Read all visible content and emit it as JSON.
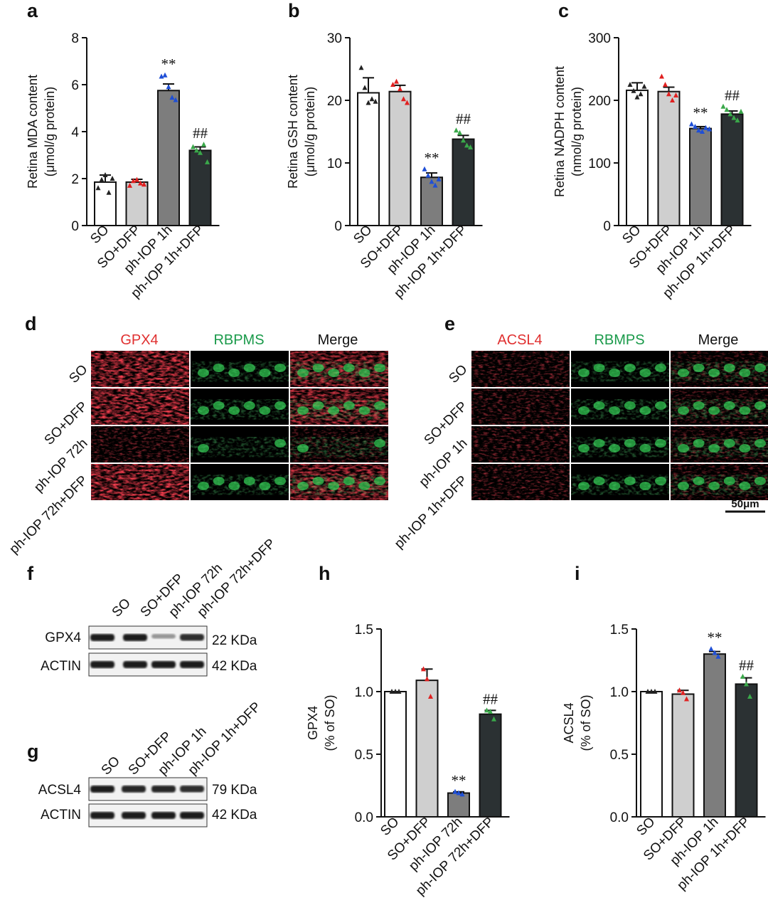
{
  "colors": {
    "so": "#ffffff",
    "so_dfp": "#cfcfcf",
    "iop": "#7d7d7d",
    "iop_dfp": "#2b3133",
    "dot_so": "#222222",
    "dot_so_dfp": "#e02020",
    "dot_iop": "#1f4fd6",
    "dot_iop_dfp": "#3aa84a",
    "red_channel": "#e03030",
    "green_channel": "#1a9a4a"
  },
  "panel_letters": {
    "a": "a",
    "b": "b",
    "c": "c",
    "d": "d",
    "e": "e",
    "f": "f",
    "g": "g",
    "h": "h",
    "i": "i"
  },
  "chart_data": [
    {
      "id": "a",
      "type": "bar",
      "ylabel_line1": "Retina MDA content",
      "ylabel_line2": "(μmol/g protein)",
      "categories": [
        "SO",
        "SO+DFP",
        "ph-IOP 1h",
        "ph-IOP 1h+DFP"
      ],
      "values": [
        1.85,
        1.85,
        5.75,
        3.2
      ],
      "errors": [
        0.3,
        0.12,
        0.28,
        0.15
      ],
      "points": [
        [
          1.6,
          1.95,
          2.15,
          1.4,
          2.0
        ],
        [
          1.7,
          1.9,
          1.95,
          1.8,
          1.75
        ],
        [
          6.35,
          6.4,
          5.9,
          5.45,
          5.35
        ],
        [
          3.35,
          3.2,
          3.1,
          3.45,
          2.7
        ]
      ],
      "ylim": [
        0,
        8
      ],
      "yticks": [
        0,
        2,
        4,
        6,
        8
      ],
      "ytick_labels": [
        "0",
        "2",
        "4",
        "6",
        "8"
      ],
      "annotations": [
        "",
        "",
        "**",
        "##"
      ]
    },
    {
      "id": "b",
      "type": "bar",
      "ylabel_line1": "Retina GSH content",
      "ylabel_line2": "(μmol/g protein)",
      "categories": [
        "SO",
        "SO+DFP",
        "ph-IOP 1h",
        "ph-IOP 1h+DFP"
      ],
      "values": [
        21.2,
        21.4,
        7.7,
        13.8
      ],
      "errors": [
        2.4,
        1.0,
        0.7,
        0.6
      ],
      "points": [
        [
          25.2,
          22.0,
          19.6,
          20.2,
          19.8
        ],
        [
          22.5,
          23.0,
          21.8,
          20.2,
          19.6
        ],
        [
          9.0,
          8.0,
          7.0,
          6.4,
          7.4
        ],
        [
          15.2,
          14.8,
          13.6,
          12.8,
          12.5
        ]
      ],
      "ylim": [
        0,
        30
      ],
      "yticks": [
        0,
        10,
        20,
        30
      ],
      "ytick_labels": [
        "0",
        "10",
        "20",
        "30"
      ],
      "annotations": [
        "",
        "",
        "**",
        "##"
      ]
    },
    {
      "id": "c",
      "type": "bar",
      "ylabel_line1": "Retina NADPH content",
      "ylabel_line2": "(nmol/g protein)",
      "categories": [
        "SO",
        "SO+DFP",
        "ph-IOP 1h",
        "ph-IOP 1h+DFP"
      ],
      "values": [
        216,
        214,
        155,
        178
      ],
      "errors": [
        12,
        7,
        3,
        5
      ],
      "points": [
        [
          225,
          215,
          205,
          210,
          222
        ],
        [
          238,
          225,
          210,
          200,
          208
        ],
        [
          162,
          158,
          152,
          150,
          156,
          154
        ],
        [
          190,
          185,
          178,
          172,
          168,
          182
        ]
      ],
      "ylim": [
        0,
        300
      ],
      "yticks": [
        0,
        100,
        200,
        300
      ],
      "ytick_labels": [
        "0",
        "100",
        "200",
        "300"
      ],
      "annotations": [
        "",
        "",
        "**",
        "##"
      ]
    },
    {
      "id": "h",
      "type": "bar",
      "ylabel_line1": "GPX4",
      "ylabel_line2": "(% of SO)",
      "categories": [
        "SO",
        "SO+DFP",
        "ph-IOP 72h",
        "ph-IOP 72h+DFP"
      ],
      "values": [
        1.0,
        1.09,
        0.19,
        0.82
      ],
      "errors": [
        0.0,
        0.09,
        0.01,
        0.03
      ],
      "points": [
        [
          1.0,
          1.0,
          1.0
        ],
        [
          1.18,
          1.1,
          0.96
        ],
        [
          0.2,
          0.19,
          0.18
        ],
        [
          0.85,
          0.84,
          0.78
        ]
      ],
      "ylim": [
        0,
        1.5
      ],
      "yticks": [
        0,
        0.5,
        1.0,
        1.5
      ],
      "ytick_labels": [
        "0.0",
        "0.5",
        "1.0",
        "1.5"
      ],
      "annotations": [
        "",
        "",
        "**",
        "##"
      ]
    },
    {
      "id": "i",
      "type": "bar",
      "ylabel_line1": "ACSL4",
      "ylabel_line2": "(% of SO)",
      "categories": [
        "SO",
        "SO+DFP",
        "ph-IOP 1h",
        "ph-IOP 1h+DFP"
      ],
      "values": [
        1.0,
        0.98,
        1.3,
        1.06
      ],
      "errors": [
        0.0,
        0.03,
        0.02,
        0.05
      ],
      "points": [
        [
          1.0,
          1.0,
          1.0
        ],
        [
          1.01,
          0.99,
          0.94
        ],
        [
          1.34,
          1.31,
          1.28
        ],
        [
          1.12,
          1.06,
          0.96
        ]
      ],
      "ylim": [
        0,
        1.5
      ],
      "yticks": [
        0,
        0.5,
        1.0,
        1.5
      ],
      "ytick_labels": [
        "0.0",
        "0.5",
        "1.0",
        "1.5"
      ],
      "annotations": [
        "",
        "",
        "**",
        "##"
      ]
    }
  ],
  "micrograph_d": {
    "channels": [
      "GPX4",
      "RBPMS",
      "Merge"
    ],
    "rows": [
      "SO",
      "SO+DFP",
      "ph-IOP 72h",
      "ph-IOP 72h+DFP"
    ]
  },
  "micrograph_e": {
    "channels": [
      "ACSL4",
      "RBMPS",
      "Merge"
    ],
    "rows": [
      "SO",
      "SO+DFP",
      "ph-IOP 1h",
      "ph-IOP 1h+DFP"
    ],
    "scale_bar": "50μm"
  },
  "western_f": {
    "lanes": [
      "SO",
      "SO+DFP",
      "ph-IOP 72h",
      "ph-IOP 72h+DFP"
    ],
    "bands": [
      {
        "name": "GPX4",
        "kda": "22 KDa",
        "intensity": [
          1.0,
          1.0,
          0.3,
          0.9
        ]
      },
      {
        "name": "ACTIN",
        "kda": "42 KDa",
        "intensity": [
          1.0,
          1.0,
          1.0,
          1.0
        ]
      }
    ]
  },
  "western_g": {
    "lanes": [
      "SO",
      "SO+DFP",
      "ph-IOP 1h",
      "ph-IOP 1h+DFP"
    ],
    "bands": [
      {
        "name": "ACSL4",
        "kda": "79 KDa",
        "intensity": [
          1.0,
          0.95,
          0.95,
          0.9
        ]
      },
      {
        "name": "ACTIN",
        "kda": "42 KDa",
        "intensity": [
          1.0,
          1.0,
          1.0,
          1.0
        ]
      }
    ]
  }
}
